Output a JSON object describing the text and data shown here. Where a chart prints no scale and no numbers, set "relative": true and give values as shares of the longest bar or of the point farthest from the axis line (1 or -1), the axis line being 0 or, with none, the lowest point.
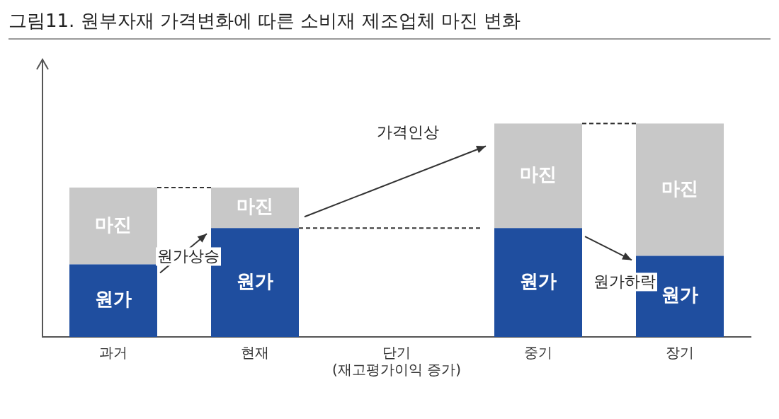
{
  "chart_data": {
    "type": "bar",
    "stacked": true,
    "relative": true,
    "title": "그림11. 원부자재 가격변화에 따른 소비재 제조업체 마진 변화",
    "categories": [
      "과거",
      "현재",
      "단기\n(재고평가이익 증가)",
      "중기",
      "장기"
    ],
    "series": [
      {
        "name": "원가",
        "color": "#1f4e9f",
        "values": [
          0.34,
          0.51,
          null,
          0.51,
          0.38
        ]
      },
      {
        "name": "마진",
        "color": "#c8c8c8",
        "values": [
          0.36,
          0.19,
          null,
          0.49,
          0.62
        ]
      }
    ],
    "annotations": [
      "원가상승",
      "가격인상",
      "원가하락"
    ],
    "grid": false,
    "legend": false
  }
}
